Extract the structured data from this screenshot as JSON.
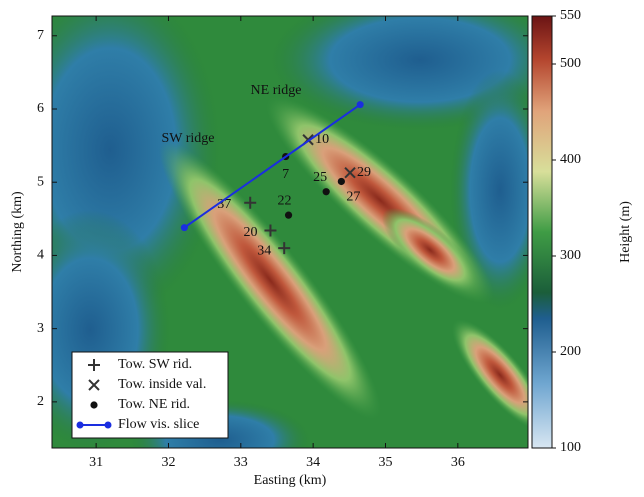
{
  "chart_data": {
    "type": "terrain-map",
    "xlabel": "Easting (km)",
    "ylabel": "Northing (km)",
    "xlim": [
      30.39,
      36.97
    ],
    "ylim": [
      1.37,
      7.27
    ],
    "xticks": [
      31,
      32,
      33,
      34,
      35,
      36
    ],
    "yticks": [
      2,
      3,
      4,
      5,
      6,
      7
    ],
    "annotations": [
      "NE ridge",
      "SW ridge"
    ],
    "colorbar": {
      "label": "Height (m)",
      "lim": [
        100,
        550
      ],
      "ticks": [
        100,
        200,
        300,
        400,
        500,
        550
      ]
    },
    "legend": "lower left",
    "series": [
      {
        "name": "Tow. SW rid.",
        "marker": "plus",
        "color": "#333333",
        "x": [
          33.13,
          33.41,
          33.6
        ],
        "y": [
          4.72,
          4.34,
          4.1
        ],
        "labels": [
          "37",
          "20",
          "34"
        ]
      },
      {
        "name": "Tow. inside val.",
        "marker": "cross",
        "color": "#333333",
        "x": [
          33.93,
          34.51
        ],
        "y": [
          5.58,
          5.13
        ],
        "labels": [
          "10",
          "29"
        ]
      },
      {
        "name": "Tow. NE rid.",
        "marker": "dot",
        "color": "#111111",
        "x": [
          33.62,
          33.66,
          34.18,
          34.39
        ],
        "y": [
          5.35,
          4.55,
          4.87,
          5.01
        ],
        "labels": [
          "7",
          "22",
          "25",
          "27"
        ]
      },
      {
        "name": "Flow vis. slice",
        "marker": "line",
        "color": "#1a2ee0",
        "x": [
          32.22,
          34.65
        ],
        "y": [
          4.38,
          6.06
        ]
      }
    ]
  }
}
